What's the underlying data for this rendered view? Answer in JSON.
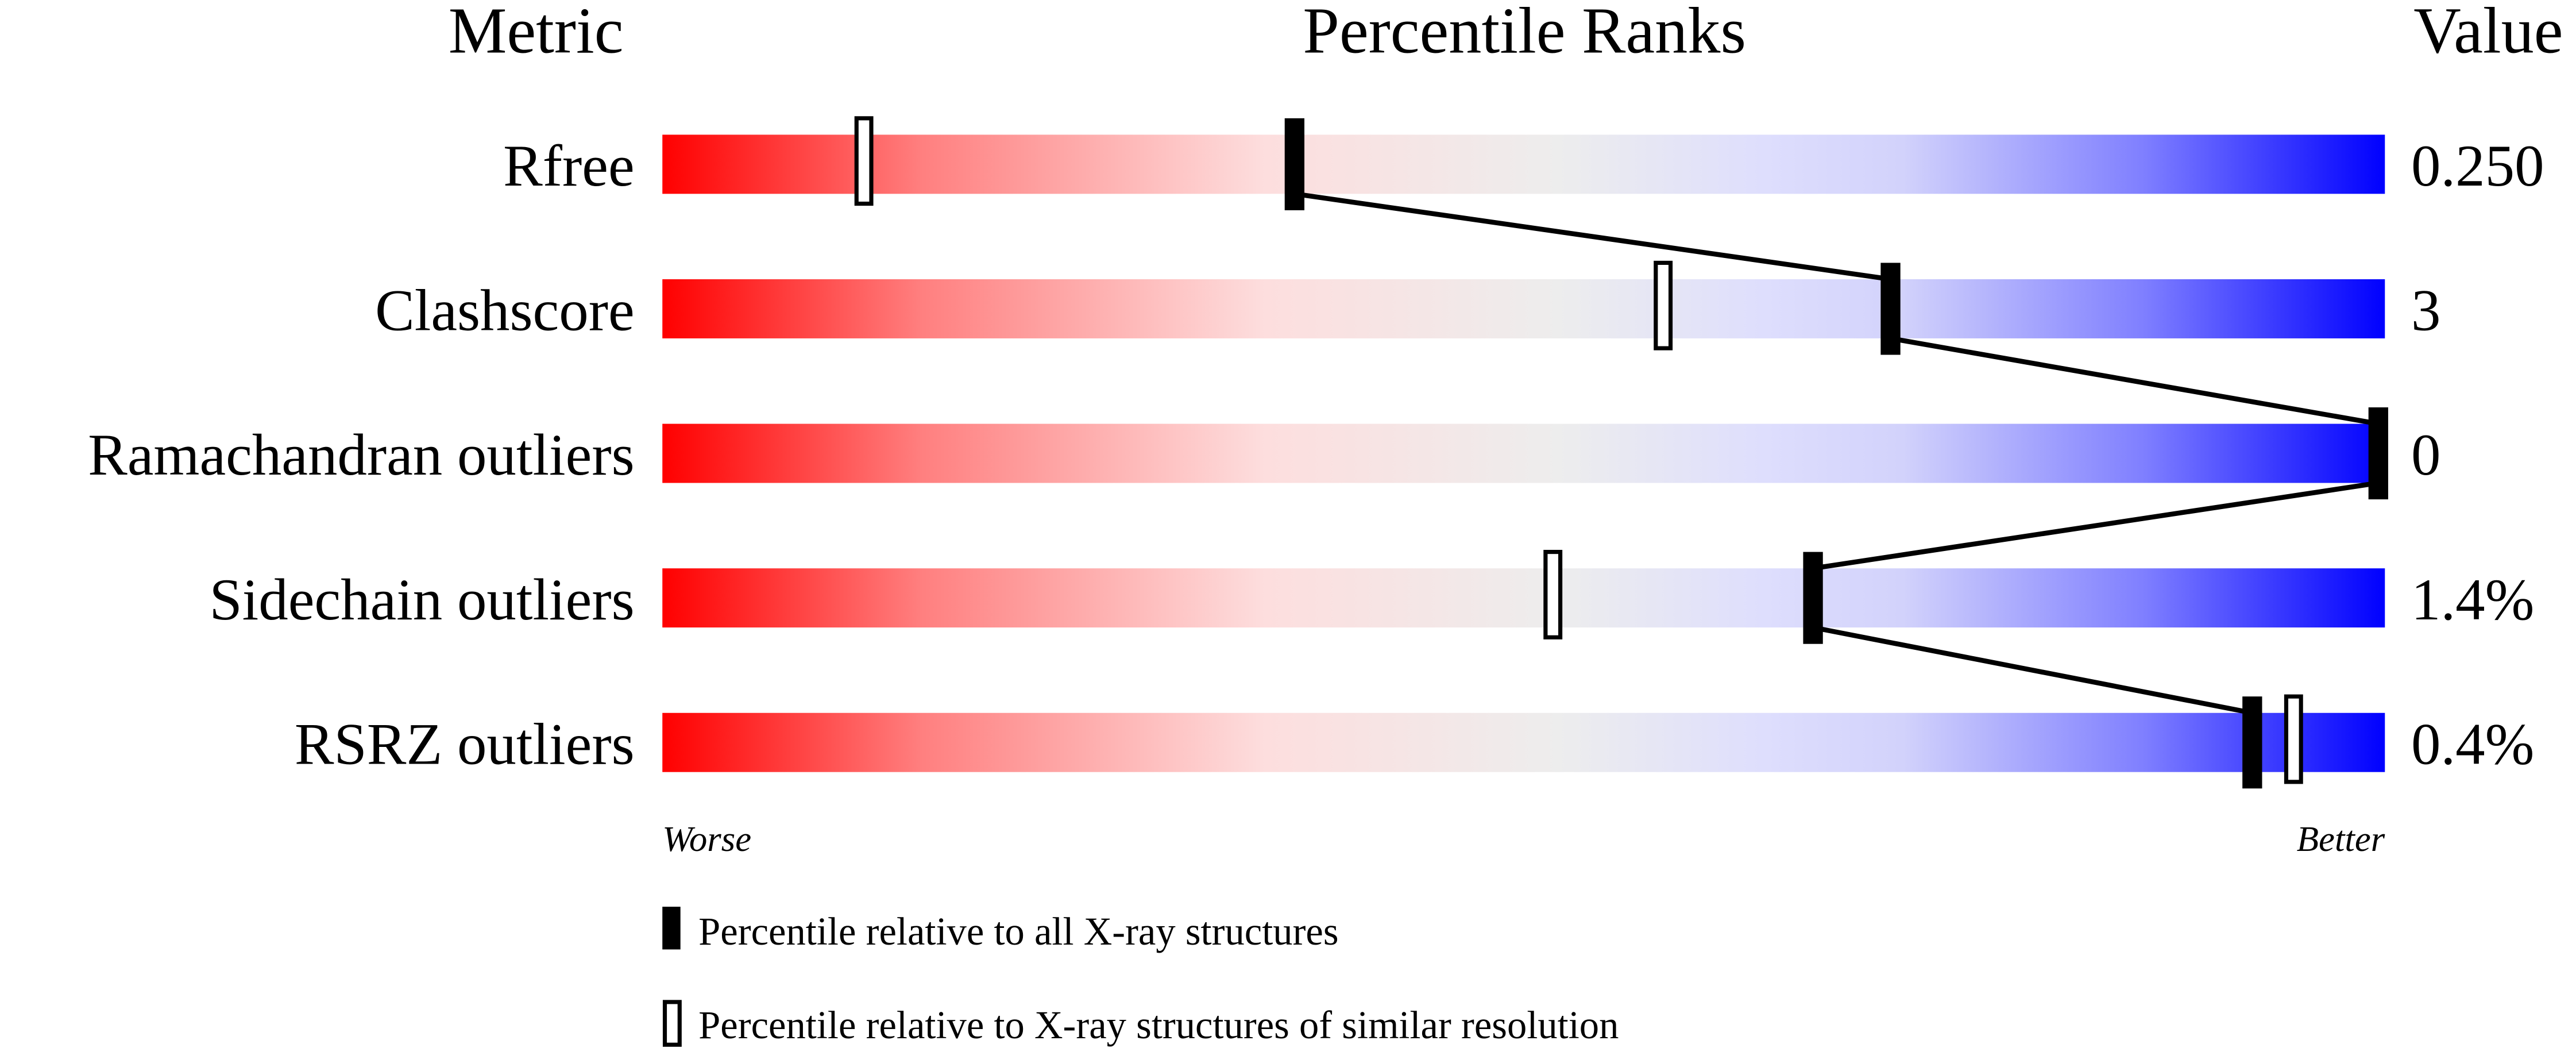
{
  "chart_data": {
    "type": "percentile-slider",
    "headers": {
      "metric": "Metric",
      "ranks": "Percentile Ranks",
      "value": "Value"
    },
    "scale": {
      "min": 0,
      "max": 100,
      "left_label": "Worse",
      "right_label": "Better"
    },
    "colors": {
      "worse": "#ff0000",
      "neutral": "#ededed",
      "better": "#0000ff",
      "marker": "#000000"
    },
    "rows": [
      {
        "metric": "Rfree",
        "value": "0.250",
        "percentile_all": 36.7,
        "percentile_similar": 11.7
      },
      {
        "metric": "Clashscore",
        "value": "3",
        "percentile_all": 71.3,
        "percentile_similar": 58.1
      },
      {
        "metric": "Ramachandran outliers",
        "value": "0",
        "percentile_all": 100,
        "percentile_similar": null
      },
      {
        "metric": "Sidechain outliers",
        "value": "1.4%",
        "percentile_all": 66.8,
        "percentile_similar": 51.7
      },
      {
        "metric": "RSRZ outliers",
        "value": "0.4%",
        "percentile_all": 92.3,
        "percentile_similar": 94.7
      }
    ],
    "legend": [
      {
        "marker": "filled",
        "label": "Percentile relative to all X-ray structures"
      },
      {
        "marker": "open",
        "label": "Percentile relative to X-ray structures of similar resolution"
      }
    ]
  }
}
